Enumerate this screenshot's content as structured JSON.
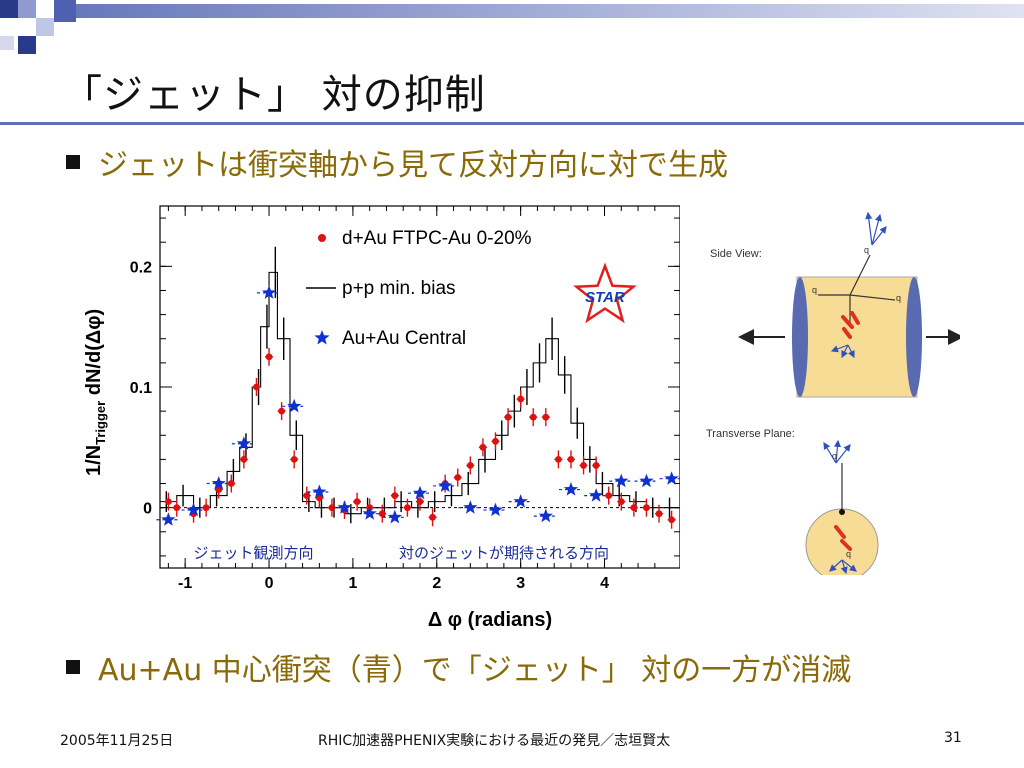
{
  "slide": {
    "title": "「ジェット」 対の抑制",
    "bullet1": "ジェットは衝突軸から見て反対方向に対で生成",
    "bullet2": "Au+Au 中心衝突（青）で「ジェット」 対の一方が消滅",
    "footer_date": "2005年11月25日",
    "footer_center": "RHIC加速器PHENIX実験における最近の発見／志垣賢太",
    "page_number": "31"
  },
  "colors": {
    "accent": "#6070b8",
    "bullet_text": "#8a6a08",
    "red_points": "#e01010",
    "blue_stars": "#1030d0",
    "nucleus": "#f7dc96"
  },
  "diagram": {
    "side_view_label": "Side View:",
    "transverse_label": "Transverse Plane:",
    "quark_label": "q"
  },
  "chart_data": {
    "type": "scatter",
    "xlabel": "Δ φ (radians)",
    "ylabel_main": "1/N",
    "ylabel_sub": "Trigger",
    "ylabel_tail": " dN/d(Δφ)",
    "xlim": [
      -1.3,
      4.9
    ],
    "ylim": [
      -0.05,
      0.25
    ],
    "x_ticks": [
      -1,
      0,
      1,
      2,
      3,
      4
    ],
    "y_ticks": [
      0,
      0.1,
      0.2
    ],
    "y_tick_labels": [
      "0",
      "0.1",
      "0.2"
    ],
    "logo": "STAR",
    "annotations": [
      "ジェット観測方向",
      "対のジェットが期待される方向"
    ],
    "series": [
      {
        "name": "d+Au FTPC-Au 0-20%",
        "marker": "circle",
        "x": [
          -1.2,
          -1.1,
          -0.9,
          -0.75,
          -0.6,
          -0.45,
          -0.3,
          -0.15,
          0,
          0.15,
          0.3,
          0.45,
          0.6,
          0.75,
          0.9,
          1.05,
          1.2,
          1.35,
          1.5,
          1.65,
          1.8,
          1.95,
          2.1,
          2.25,
          2.4,
          2.55,
          2.7,
          2.85,
          3.0,
          3.15,
          3.3,
          3.45,
          3.6,
          3.75,
          3.9,
          4.05,
          4.2,
          4.35,
          4.5,
          4.65,
          4.8
        ],
        "y": [
          0.005,
          0.0,
          -0.005,
          0.0,
          0.015,
          0.02,
          0.04,
          0.1,
          0.125,
          0.08,
          0.04,
          0.01,
          0.008,
          0.0,
          -0.002,
          0.005,
          0.0,
          -0.005,
          0.01,
          0.0,
          0.005,
          -0.008,
          0.02,
          0.025,
          0.035,
          0.05,
          0.055,
          0.075,
          0.09,
          0.075,
          0.075,
          0.04,
          0.04,
          0.035,
          0.035,
          0.01,
          0.005,
          0.0,
          0.0,
          -0.005,
          -0.01
        ]
      },
      {
        "name": "p+p min. bias",
        "marker": "line",
        "x": [
          -1.3,
          -1.1,
          -0.9,
          -0.7,
          -0.5,
          -0.35,
          -0.2,
          -0.1,
          0,
          0.1,
          0.25,
          0.4,
          0.55,
          0.7,
          0.9,
          1.1,
          1.3,
          1.5,
          1.7,
          1.9,
          2.1,
          2.3,
          2.5,
          2.7,
          2.85,
          3.0,
          3.15,
          3.3,
          3.45,
          3.6,
          3.75,
          3.9,
          4.1,
          4.3,
          4.5,
          4.7,
          4.9
        ],
        "y": [
          0.005,
          0.01,
          0.0,
          0.01,
          0.03,
          0.05,
          0.1,
          0.15,
          0.195,
          0.14,
          0.06,
          0.005,
          0.0,
          0.0,
          -0.005,
          0.0,
          0.0,
          0.005,
          0.0,
          0.005,
          0.01,
          0.02,
          0.04,
          0.06,
          0.08,
          0.1,
          0.12,
          0.14,
          0.11,
          0.07,
          0.04,
          0.02,
          0.01,
          0.005,
          0.0,
          0.0,
          0.0
        ]
      },
      {
        "name": "Au+Au Central",
        "marker": "star",
        "x": [
          -1.2,
          -0.9,
          -0.6,
          -0.3,
          0,
          0.3,
          0.6,
          0.9,
          1.2,
          1.5,
          1.8,
          2.1,
          2.4,
          2.7,
          3.0,
          3.3,
          3.6,
          3.9,
          4.2,
          4.5,
          4.8
        ],
        "y": [
          -0.01,
          -0.002,
          0.02,
          0.053,
          0.178,
          0.084,
          0.013,
          0.0,
          -0.005,
          -0.008,
          0.012,
          0.018,
          0.0,
          -0.002,
          0.005,
          -0.007,
          0.015,
          0.01,
          0.022,
          0.022,
          0.024
        ]
      }
    ]
  }
}
